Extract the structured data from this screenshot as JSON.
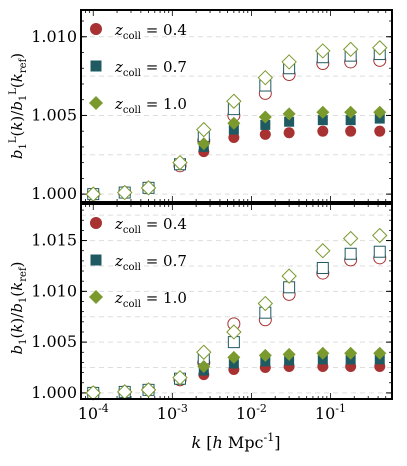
{
  "chart_data": [
    {
      "type": "scatter",
      "panel": "top",
      "ylabel": "b_1^L(k)/b_1^L(k_ref)",
      "yscale": "linear",
      "ylim": [
        0.9995,
        1.0117
      ],
      "yticks": [
        1.0,
        1.005,
        1.01
      ],
      "ytick_labels": [
        "1.000",
        "1.005",
        "1.010"
      ],
      "grid": "dashed-horizontal",
      "legend": [
        {
          "label_base": "z",
          "label_sub": "coll",
          "label_value": "= 0.4",
          "marker": "circle",
          "color": "#a83232"
        },
        {
          "label_base": "z",
          "label_sub": "coll",
          "label_value": "= 0.7",
          "marker": "square",
          "color": "#1f5a63"
        },
        {
          "label_base": "z",
          "label_sub": "coll",
          "label_value": "= 1.0",
          "marker": "diamond",
          "color": "#7a9a2e"
        }
      ],
      "legend_position": "upper-left",
      "x": [
        0.0001,
        0.00025,
        0.0005,
        0.00125,
        0.0025,
        0.006,
        0.015,
        0.03,
        0.08,
        0.18,
        0.42
      ],
      "series": [
        {
          "group": "z0.4",
          "marker": "circle",
          "filled": true,
          "color": "#a83232",
          "values": [
            1.0,
            1.0001,
            1.0004,
            1.0018,
            1.0027,
            1.0036,
            1.0038,
            1.0039,
            1.004,
            1.004,
            1.004
          ]
        },
        {
          "group": "z0.4",
          "marker": "circle",
          "filled": false,
          "color": "#a83232",
          "values": [
            1.0,
            1.0001,
            1.0004,
            1.0018,
            1.0034,
            1.005,
            1.0064,
            1.0076,
            1.0083,
            1.0084,
            1.0085
          ]
        },
        {
          "group": "z0.7",
          "marker": "square",
          "filled": true,
          "color": "#1f5a63",
          "values": [
            1.0,
            1.0001,
            1.0004,
            1.0019,
            1.003,
            1.0041,
            1.0044,
            1.0046,
            1.0047,
            1.0047,
            1.0048
          ]
        },
        {
          "group": "z0.7",
          "marker": "square",
          "filled": false,
          "color": "#1f5a63",
          "values": [
            1.0,
            1.0001,
            1.0004,
            1.0019,
            1.0037,
            1.0054,
            1.0069,
            1.008,
            1.0087,
            1.0088,
            1.0089
          ]
        },
        {
          "group": "z1.0",
          "marker": "diamond",
          "filled": true,
          "color": "#7a9a2e",
          "values": [
            1.0,
            1.0001,
            1.0004,
            1.002,
            1.0032,
            1.0045,
            1.0049,
            1.0051,
            1.0052,
            1.0052,
            1.0052
          ]
        },
        {
          "group": "z1.0",
          "marker": "diamond",
          "filled": false,
          "color": "#7a9a2e",
          "values": [
            1.0,
            1.0001,
            1.0004,
            1.002,
            1.0041,
            1.0059,
            1.0074,
            1.0084,
            1.0091,
            1.0092,
            1.0093
          ]
        }
      ]
    },
    {
      "type": "scatter",
      "panel": "bottom",
      "ylabel": "b_1(k)/b_1(k_ref)",
      "xlabel": "k [h Mpc^-1]",
      "xscale": "log",
      "xlim": [
        7e-05,
        0.6
      ],
      "xticks": [
        0.0001,
        0.001,
        0.01,
        0.1
      ],
      "xtick_labels": [
        "10^-4",
        "10^-3",
        "10^-2",
        "10^-1"
      ],
      "yscale": "linear",
      "ylim": [
        0.9994,
        1.0186
      ],
      "yticks": [
        1.0,
        1.005,
        1.01,
        1.015
      ],
      "ytick_labels": [
        "1.000",
        "1.005",
        "1.010",
        "1.015"
      ],
      "grid": "dashed-horizontal",
      "legend": [
        {
          "label_base": "z",
          "label_sub": "coll",
          "label_value": "= 0.4",
          "marker": "circle",
          "color": "#a83232"
        },
        {
          "label_base": "z",
          "label_sub": "coll",
          "label_value": "= 0.7",
          "marker": "square",
          "color": "#1f5a63"
        },
        {
          "label_base": "z",
          "label_sub": "coll",
          "label_value": "= 1.0",
          "marker": "diamond",
          "color": "#7a9a2e"
        }
      ],
      "legend_position": "upper-left",
      "x": [
        0.0001,
        0.00025,
        0.0005,
        0.00125,
        0.0025,
        0.006,
        0.015,
        0.03,
        0.08,
        0.18,
        0.42
      ],
      "series": [
        {
          "group": "z0.4",
          "marker": "circle",
          "filled": true,
          "color": "#a83232",
          "values": [
            1.0,
            1.0001,
            1.0003,
            1.0012,
            1.0018,
            1.0023,
            1.0025,
            1.0026,
            1.0026,
            1.0026,
            1.0026
          ]
        },
        {
          "group": "z0.4",
          "marker": "circle",
          "filled": false,
          "color": "#a83232",
          "values": [
            1.0,
            1.0001,
            1.0003,
            1.0013,
            1.003,
            1.0068,
            1.0072,
            1.0097,
            1.0118,
            1.0131,
            1.0133
          ]
        },
        {
          "group": "z0.7",
          "marker": "square",
          "filled": true,
          "color": "#1f5a63",
          "values": [
            1.0,
            1.0001,
            1.0003,
            1.0013,
            1.0022,
            1.0029,
            1.0031,
            1.0032,
            1.0033,
            1.0033,
            1.0033
          ]
        },
        {
          "group": "z0.7",
          "marker": "square",
          "filled": false,
          "color": "#1f5a63",
          "values": [
            1.0,
            1.0001,
            1.0003,
            1.0014,
            1.0034,
            1.005,
            1.0079,
            1.0104,
            1.0123,
            1.0137,
            1.0139
          ]
        },
        {
          "group": "z1.0",
          "marker": "diamond",
          "filled": true,
          "color": "#7a9a2e",
          "values": [
            1.0,
            1.0001,
            1.0003,
            1.0014,
            1.0026,
            1.0035,
            1.0037,
            1.0038,
            1.0039,
            1.0039,
            1.0039
          ]
        },
        {
          "group": "z1.0",
          "marker": "diamond",
          "filled": false,
          "color": "#7a9a2e",
          "values": [
            1.0,
            1.0001,
            1.0003,
            1.0015,
            1.004,
            1.006,
            1.0088,
            1.0115,
            1.014,
            1.0152,
            1.0155
          ]
        }
      ]
    }
  ]
}
